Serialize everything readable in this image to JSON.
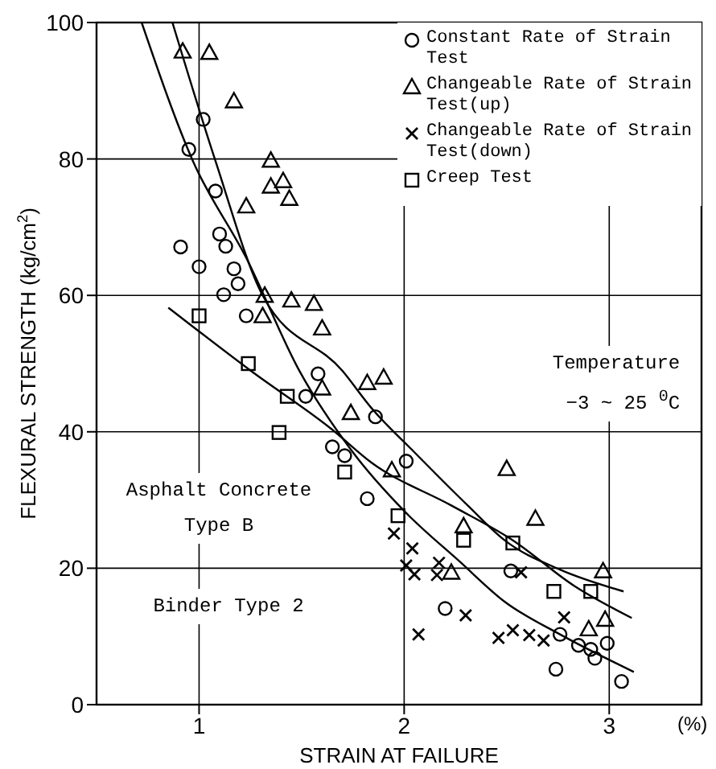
{
  "chart_data": {
    "type": "scatter",
    "xlabel": "STRAIN AT FAILURE",
    "ylabel": "FLEXURAL STRENGTH (kg/cm$^{2}$)",
    "xlim": [
      0.5,
      3.45
    ],
    "ylim": [
      0,
      100
    ],
    "xticks": [
      1,
      2,
      3
    ],
    "yticks": [
      0,
      20,
      40,
      60,
      80,
      100
    ],
    "grid": true,
    "legend": "top right",
    "annotations": [
      "Temperature −3 ~ 25 $^{0}$C",
      "Asphalt Concrete Type B",
      "Binder Type 2",
      "(%)"
    ],
    "series": [
      {
        "name": "Constant Rate of Strain Test",
        "color": "#000000",
        "marker": "circle",
        "x": [
          1.02,
          0.95,
          1.08,
          1.1,
          1.13,
          0.91,
          1.0,
          1.17,
          1.19,
          1.12,
          1.23,
          1.58,
          1.52,
          1.86,
          1.65,
          1.71,
          1.82,
          2.01,
          2.52,
          2.2,
          2.76,
          2.85,
          2.91,
          2.93,
          2.99,
          2.74,
          3.06
        ],
        "values": [
          85.8,
          81.4,
          75.3,
          69.0,
          67.2,
          67.1,
          64.2,
          63.9,
          61.7,
          60.1,
          57.0,
          48.5,
          45.2,
          42.2,
          37.8,
          36.5,
          30.2,
          35.7,
          19.6,
          14.1,
          10.3,
          8.7,
          8.1,
          6.8,
          9.0,
          5.2,
          3.4
        ]
      },
      {
        "name": "Changeable Rate of Strain Test(up)",
        "color": "#000000",
        "marker": "triangle",
        "x": [
          0.92,
          1.05,
          1.17,
          1.35,
          1.35,
          1.41,
          1.44,
          1.23,
          1.32,
          1.45,
          1.56,
          1.31,
          1.6,
          1.6,
          1.82,
          1.9,
          1.74,
          1.94,
          2.5,
          2.64,
          2.29,
          2.23,
          2.97,
          2.9,
          2.98
        ],
        "values": [
          95.8,
          95.6,
          88.5,
          79.8,
          76.0,
          76.8,
          74.2,
          73.1,
          60.0,
          59.3,
          58.8,
          57.0,
          55.2,
          46.4,
          47.2,
          48.0,
          42.8,
          34.4,
          34.6,
          27.3,
          26.2,
          19.4,
          19.6,
          11.1,
          12.5
        ]
      },
      {
        "name": "Changeable Rate of Strain Test(down)",
        "color": "#000000",
        "marker": "cross",
        "x": [
          1.95,
          2.04,
          2.01,
          2.05,
          2.17,
          2.16,
          2.57,
          2.3,
          2.07,
          2.46,
          2.53,
          2.61,
          2.68,
          2.78
        ],
        "values": [
          25.1,
          22.9,
          20.4,
          19.1,
          20.8,
          19.0,
          19.4,
          13.1,
          10.3,
          9.8,
          10.9,
          10.2,
          9.4,
          12.8
        ]
      },
      {
        "name": "Creep Test",
        "color": "#000000",
        "marker": "square",
        "x": [
          1.0,
          1.24,
          1.43,
          1.39,
          1.71,
          1.97,
          2.29,
          2.53,
          2.73,
          2.91
        ],
        "values": [
          57.0,
          50.0,
          45.2,
          39.9,
          34.1,
          27.7,
          24.1,
          23.7,
          16.6,
          16.6
        ]
      },
      {
        "type": "line",
        "color": "#000000",
        "x": [
          0.87,
          1.08,
          1.31,
          1.7,
          1.84,
          2.05,
          2.31,
          2.49,
          2.76,
          3.07
        ],
        "values": [
          100,
          79.7,
          60,
          48.9,
          43.5,
          37,
          29.2,
          24.1,
          19.8,
          16.6
        ]
      },
      {
        "type": "line",
        "color": "#000000",
        "x": [
          0.72,
          0.97,
          1.23,
          1.49,
          1.75,
          2.0,
          2.27,
          2.49,
          2.76,
          3.12
        ],
        "values": [
          100,
          79.7,
          65.5,
          48.9,
          37,
          28.4,
          21,
          15.1,
          10.3,
          4.8
        ]
      },
      {
        "type": "line",
        "color": "#000000",
        "x": [
          0.85,
          1.25,
          1.65,
          1.84,
          2.23,
          2.53,
          2.83,
          3.11
        ],
        "values": [
          58.2,
          49,
          40.3,
          35.5,
          29.2,
          24.1,
          17.4,
          12.7
        ]
      }
    ]
  }
}
